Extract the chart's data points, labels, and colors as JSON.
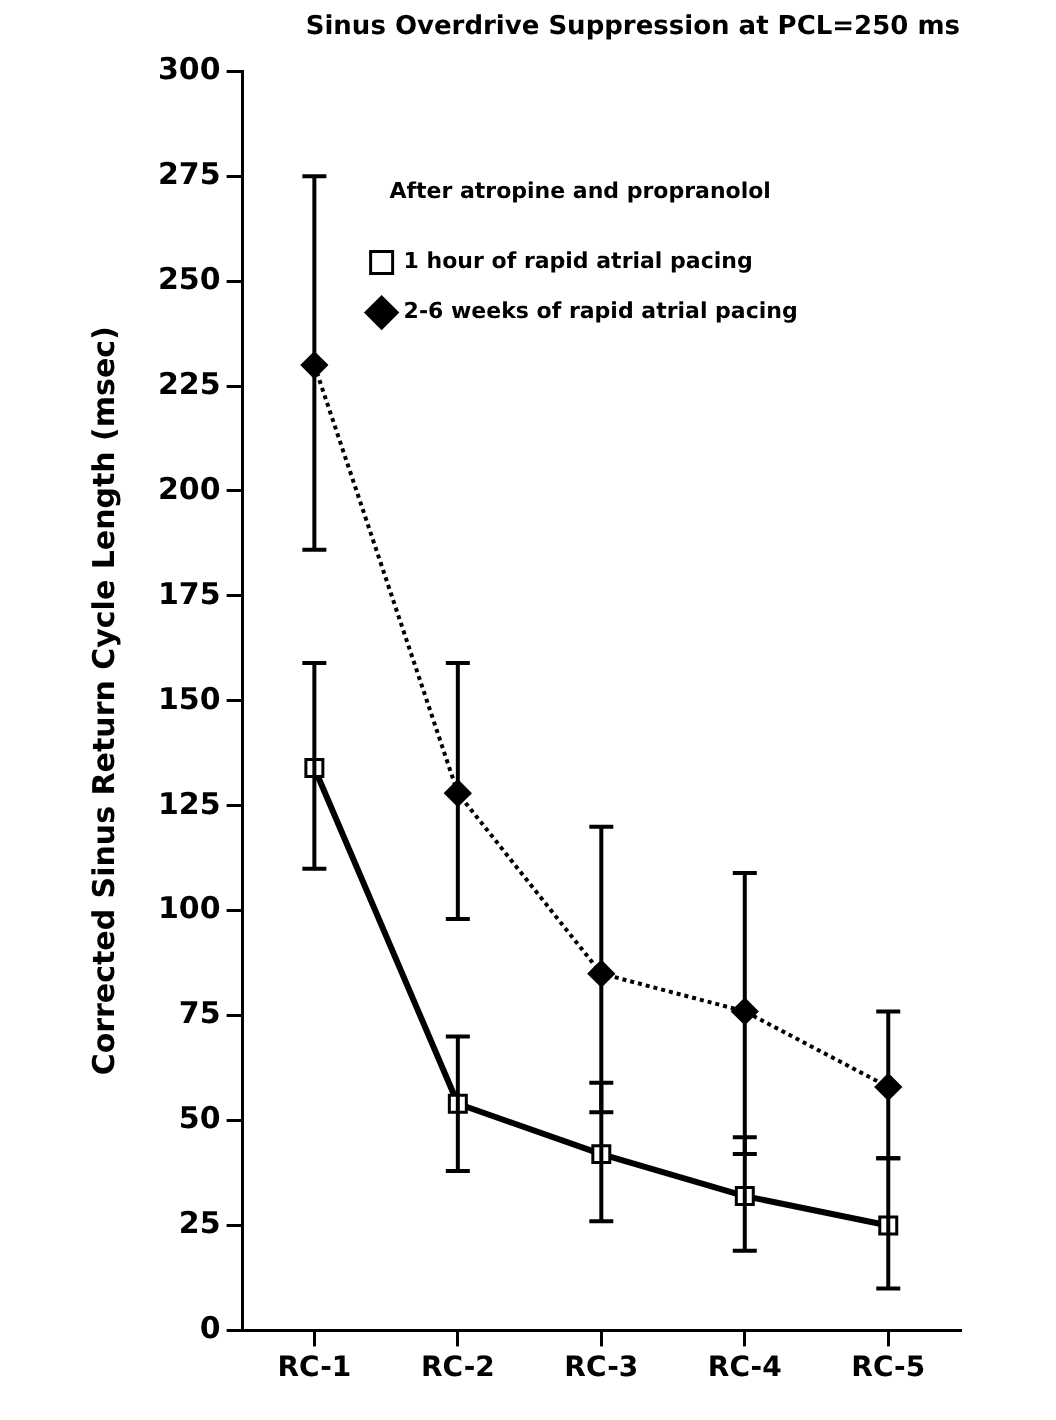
{
  "chart_data": {
    "type": "line",
    "title": "Sinus Overdrive Suppression at PCL=250 ms",
    "ylabel": "Corrected Sinus Return Cycle Length (msec)",
    "legend_title": "After atropine and propranolol",
    "categories": [
      "RC-1",
      "RC-2",
      "RC-3",
      "RC-4",
      "RC-5"
    ],
    "series": [
      {
        "name": "1 hour of rapid atrial pacing",
        "color": "#000000",
        "marker": "square",
        "line_style": "solid",
        "values": [
          134,
          54,
          42,
          32,
          25
        ],
        "errors": [
          [
            110,
            159
          ],
          [
            38,
            70
          ],
          [
            26,
            59
          ],
          [
            19,
            46
          ],
          [
            10,
            41
          ]
        ]
      },
      {
        "name": "2-6 weeks of rapid atrial pacing",
        "color": "#000000",
        "marker": "diamond",
        "line_style": "dotted",
        "values": [
          230,
          128,
          85,
          76,
          58
        ],
        "errors": [
          [
            186,
            275
          ],
          [
            98,
            159
          ],
          [
            52,
            120
          ],
          [
            42,
            109
          ],
          [
            41,
            76
          ]
        ]
      }
    ],
    "ylim": [
      0,
      300
    ],
    "yticks": [
      0,
      25,
      50,
      75,
      100,
      125,
      150,
      175,
      200,
      225,
      250,
      275,
      300
    ],
    "grid": false,
    "legend": "top right"
  }
}
